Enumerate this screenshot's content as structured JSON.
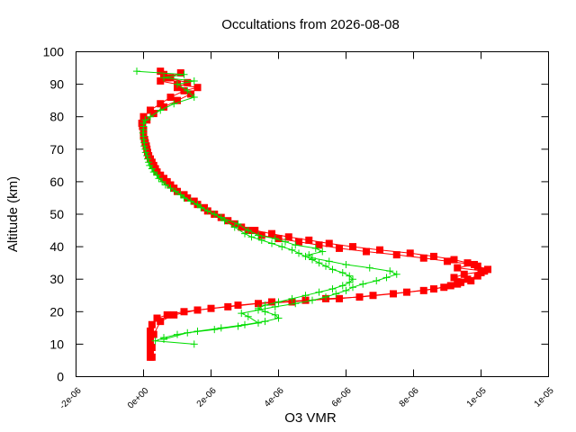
{
  "chart_data": {
    "type": "scatter",
    "title": "Occultations from 2026-08-08",
    "xlabel": "O3 VMR",
    "ylabel": "Altitude (km)",
    "xlim": [
      -2e-06,
      1e-05
    ],
    "ylim": [
      0,
      100
    ],
    "xticks": [
      -2e-06,
      0,
      2e-06,
      4e-06,
      6e-06,
      8e-06,
      1e-05,
      1.2e-05
    ],
    "xtick_labels": [
      "-2e-06",
      "0e+00",
      "2e-06",
      "4e-06",
      "6e-06",
      "8e-06",
      "1e-05",
      "1e-05"
    ],
    "yticks": [
      0,
      10,
      20,
      30,
      40,
      50,
      60,
      70,
      80,
      90,
      100
    ],
    "ytick_labels": [
      "0",
      "10",
      "20",
      "30",
      "40",
      "50",
      "60",
      "70",
      "80",
      "90",
      "100"
    ],
    "grid": false,
    "series": [
      {
        "color": "#ff0000",
        "marker": "square",
        "points": [
          [
            2e-07,
            6
          ],
          [
            2e-07,
            8
          ],
          [
            2e-07,
            10
          ],
          [
            2e-07,
            12
          ],
          [
            2e-07,
            14
          ],
          [
            2.5e-07,
            16
          ],
          [
            4e-07,
            18
          ],
          [
            7e-07,
            19
          ],
          [
            1.2e-06,
            20
          ],
          [
            2e-06,
            21
          ],
          [
            2.8e-06,
            22
          ],
          [
            3.8e-06,
            23
          ],
          [
            4.8e-06,
            23.5
          ],
          [
            5.8e-06,
            24
          ],
          [
            6.8e-06,
            25
          ],
          [
            7.8e-06,
            26
          ],
          [
            8.6e-06,
            27
          ],
          [
            9.1e-06,
            28
          ],
          [
            9.4e-06,
            29
          ],
          [
            9.6e-06,
            30
          ],
          [
            9.9e-06,
            31
          ],
          [
            1e-05,
            32
          ],
          [
            1.02e-05,
            33
          ],
          [
            9.9e-06,
            34
          ],
          [
            9.6e-06,
            35
          ],
          [
            9.2e-06,
            36
          ],
          [
            8.6e-06,
            37
          ],
          [
            7.9e-06,
            38
          ],
          [
            7e-06,
            39
          ],
          [
            6.2e-06,
            40
          ],
          [
            5.5e-06,
            41
          ],
          [
            4.9e-06,
            42
          ],
          [
            4.3e-06,
            43
          ],
          [
            3.8e-06,
            44
          ],
          [
            3.3e-06,
            45
          ],
          [
            2.9e-06,
            46
          ],
          [
            2.5e-06,
            48
          ],
          [
            2.1e-06,
            50
          ],
          [
            1.8e-06,
            52
          ],
          [
            1.5e-06,
            54
          ],
          [
            1.2e-06,
            56
          ],
          [
            9e-07,
            58
          ],
          [
            7e-07,
            60
          ],
          [
            5e-07,
            62
          ],
          [
            3.5e-07,
            64
          ],
          [
            2.5e-07,
            66
          ],
          [
            1.5e-07,
            68
          ],
          [
            1e-07,
            70
          ],
          [
            5e-08,
            72
          ],
          [
            0.0,
            74
          ],
          [
            0.0,
            76
          ],
          [
            -5e-08,
            78
          ],
          [
            0.0,
            80
          ],
          [
            2e-07,
            82
          ],
          [
            5e-07,
            84
          ],
          [
            8e-07,
            86
          ],
          [
            1.2e-06,
            88
          ],
          [
            1.6e-06,
            89
          ],
          [
            1e-06,
            90
          ],
          [
            5e-07,
            91
          ],
          [
            8e-07,
            92
          ],
          [
            6e-07,
            93
          ],
          [
            5e-07,
            94
          ]
        ],
        "points_b": [
          [
            2.5e-07,
            6
          ],
          [
            2.5e-07,
            9
          ],
          [
            3e-07,
            13
          ],
          [
            5e-07,
            17
          ],
          [
            9e-07,
            19
          ],
          [
            1.6e-06,
            20.5
          ],
          [
            2.5e-06,
            21.5
          ],
          [
            3.4e-06,
            22.5
          ],
          [
            4.4e-06,
            23
          ],
          [
            5.4e-06,
            24
          ],
          [
            6.4e-06,
            24.5
          ],
          [
            7.4e-06,
            25.5
          ],
          [
            8.3e-06,
            26.5
          ],
          [
            8.9e-06,
            27.5
          ],
          [
            9.3e-06,
            28.5
          ],
          [
            9.7e-06,
            29.5
          ],
          [
            9.2e-06,
            30.5
          ],
          [
            9.5e-06,
            31.5
          ],
          [
            1.01e-05,
            32.5
          ],
          [
            9.3e-06,
            33.5
          ],
          [
            9.8e-06,
            34.5
          ],
          [
            9e-06,
            35.5
          ],
          [
            8.3e-06,
            36.5
          ],
          [
            7.5e-06,
            37.5
          ],
          [
            6.6e-06,
            38.5
          ],
          [
            5.8e-06,
            39.5
          ],
          [
            5.2e-06,
            40.5
          ],
          [
            4.6e-06,
            41.5
          ],
          [
            4e-06,
            42.5
          ],
          [
            3.5e-06,
            43.5
          ],
          [
            3.1e-06,
            45
          ],
          [
            2.7e-06,
            47
          ],
          [
            2.3e-06,
            49
          ],
          [
            1.9e-06,
            51
          ],
          [
            1.6e-06,
            53
          ],
          [
            1.3e-06,
            55
          ],
          [
            1e-06,
            57
          ],
          [
            8e-07,
            59
          ],
          [
            6e-07,
            61
          ],
          [
            4e-07,
            63
          ],
          [
            3e-07,
            65
          ],
          [
            2e-07,
            67
          ],
          [
            1.2e-07,
            69
          ],
          [
            8e-08,
            71
          ],
          [
            3e-08,
            73
          ],
          [
            0.0,
            75
          ],
          [
            -3e-08,
            77
          ],
          [
            1e-07,
            79
          ],
          [
            3e-07,
            81
          ],
          [
            6e-07,
            83
          ],
          [
            1e-06,
            85
          ],
          [
            1.4e-06,
            87
          ],
          [
            1e-06,
            89
          ],
          [
            1.3e-06,
            90.5
          ],
          [
            7e-07,
            92
          ],
          [
            1.1e-06,
            93.5
          ]
        ]
      },
      {
        "color": "#00dd00",
        "marker": "plus",
        "points": [
          [
            1.5e-06,
            10
          ],
          [
            3.5e-07,
            11
          ],
          [
            6e-07,
            12
          ],
          [
            1e-06,
            13
          ],
          [
            1.6e-06,
            14
          ],
          [
            2.3e-06,
            15
          ],
          [
            3e-06,
            16
          ],
          [
            3.6e-06,
            17
          ],
          [
            4e-06,
            18
          ],
          [
            3.9e-06,
            19
          ],
          [
            3.6e-06,
            20
          ],
          [
            3.4e-06,
            21
          ],
          [
            3.6e-06,
            22
          ],
          [
            4e-06,
            23
          ],
          [
            4.4e-06,
            24
          ],
          [
            4.8e-06,
            25
          ],
          [
            5.2e-06,
            26
          ],
          [
            5.6e-06,
            27
          ],
          [
            5.9e-06,
            28
          ],
          [
            6.1e-06,
            29
          ],
          [
            6.2e-06,
            30
          ],
          [
            6.1e-06,
            31
          ],
          [
            5.9e-06,
            32
          ],
          [
            5.6e-06,
            33
          ],
          [
            5.4e-06,
            34
          ],
          [
            5.2e-06,
            35
          ],
          [
            5e-06,
            36
          ],
          [
            4.8e-06,
            37
          ],
          [
            4.6e-06,
            38
          ],
          [
            4.4e-06,
            39
          ],
          [
            4.1e-06,
            40
          ],
          [
            3.8e-06,
            41
          ],
          [
            3.5e-06,
            42
          ],
          [
            3.2e-06,
            43
          ],
          [
            3e-06,
            44
          ],
          [
            2.7e-06,
            46
          ],
          [
            2.4e-06,
            48
          ],
          [
            2.1e-06,
            50
          ],
          [
            1.7e-06,
            52
          ],
          [
            1.4e-06,
            54
          ],
          [
            1.1e-06,
            56
          ],
          [
            8e-07,
            58
          ],
          [
            5.5e-07,
            60
          ],
          [
            4e-07,
            62
          ],
          [
            2.5e-07,
            64
          ],
          [
            1.5e-07,
            66
          ],
          [
            1e-07,
            68
          ],
          [
            5e-08,
            70
          ],
          [
            2e-08,
            72
          ],
          [
            0.0,
            74
          ],
          [
            0.0,
            76
          ],
          [
            0.0,
            78
          ],
          [
            2e-07,
            80
          ],
          [
            5e-07,
            82
          ],
          [
            9e-07,
            84
          ],
          [
            1.5e-06,
            86
          ],
          [
            1.3e-06,
            88
          ],
          [
            1e-06,
            90
          ],
          [
            1.5e-06,
            91
          ],
          [
            6e-07,
            92
          ],
          [
            1.2e-06,
            93
          ],
          [
            -2e-07,
            94
          ]
        ],
        "points_b": [
          [
            6e-07,
            11.5
          ],
          [
            1.3e-06,
            13.5
          ],
          [
            2.1e-06,
            14.5
          ],
          [
            2.8e-06,
            15.5
          ],
          [
            3.4e-06,
            16.5
          ],
          [
            3.1e-06,
            18.5
          ],
          [
            2.9e-06,
            19.5
          ],
          [
            3.4e-06,
            20.5
          ],
          [
            3.9e-06,
            21.5
          ],
          [
            4.5e-06,
            22.5
          ],
          [
            5e-06,
            23.5
          ],
          [
            5.4e-06,
            24.5
          ],
          [
            5.7e-06,
            25.5
          ],
          [
            6e-06,
            26.5
          ],
          [
            6.2e-06,
            27.5
          ],
          [
            6.5e-06,
            28.5
          ],
          [
            6.9e-06,
            29.5
          ],
          [
            7.2e-06,
            30.5
          ],
          [
            7.5e-06,
            31.5
          ],
          [
            7.3e-06,
            32.5
          ],
          [
            6.7e-06,
            33.5
          ],
          [
            6e-06,
            34.5
          ],
          [
            5.5e-06,
            35.5
          ],
          [
            5e-06,
            36.5
          ],
          [
            4.9e-06,
            37.5
          ],
          [
            5.3e-06,
            38.5
          ],
          [
            5.1e-06,
            39.5
          ],
          [
            4.5e-06,
            40.5
          ],
          [
            4.2e-06,
            41.5
          ],
          [
            3.9e-06,
            42.5
          ],
          [
            3.4e-06,
            43.5
          ],
          [
            3.1e-06,
            45
          ],
          [
            2.8e-06,
            47
          ],
          [
            2.3e-06,
            49
          ],
          [
            1.9e-06,
            51
          ],
          [
            1.6e-06,
            53
          ],
          [
            1.2e-06,
            55
          ],
          [
            9.5e-07,
            57
          ],
          [
            6.5e-07,
            59
          ],
          [
            4.5e-07,
            61
          ],
          [
            3e-07,
            63
          ],
          [
            1.8e-07,
            65
          ],
          [
            1.2e-07,
            67
          ],
          [
            6e-08,
            69
          ],
          [
            2e-08,
            71
          ],
          [
            0.0,
            73
          ],
          [
            -2e-08,
            75
          ],
          [
            0.0,
            77
          ],
          [
            5e-08,
            79
          ]
        ]
      }
    ]
  }
}
